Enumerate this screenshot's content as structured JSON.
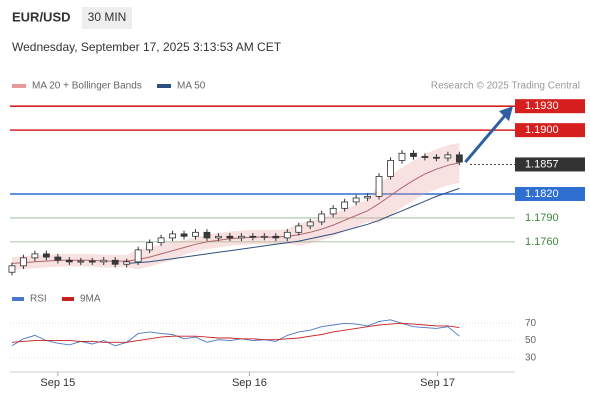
{
  "header": {
    "symbol": "EUR/USD",
    "timeframe": "30 MIN",
    "datetime": "Wednesday, September 17, 2025 3:13:53 AM CET",
    "credit": "Research © 2025 Trading Central"
  },
  "chart_data": [
    {
      "type": "candlestick",
      "open": [
        1.1722,
        1.173,
        1.174,
        1.1745,
        1.1741,
        1.1737,
        1.1735,
        1.1736,
        1.1735,
        1.1737,
        1.1732,
        1.1735,
        1.175,
        1.1759,
        1.1765,
        1.177,
        1.1767,
        1.1772,
        1.1765,
        1.1767,
        1.1765,
        1.1767,
        1.1766,
        1.1767,
        1.1765,
        1.1772,
        1.178,
        1.1785,
        1.1795,
        1.1802,
        1.181,
        1.1815,
        1.1817,
        1.1842,
        1.1862,
        1.1871,
        1.1867,
        1.1866,
        1.1865,
        1.1869
      ],
      "high": [
        1.1734,
        1.1744,
        1.1749,
        1.1749,
        1.1745,
        1.1741,
        1.174,
        1.174,
        1.1741,
        1.1741,
        1.1739,
        1.1754,
        1.1763,
        1.1769,
        1.1774,
        1.1774,
        1.1776,
        1.1776,
        1.1771,
        1.1771,
        1.1771,
        1.1771,
        1.1771,
        1.1771,
        1.1776,
        1.1784,
        1.1789,
        1.1799,
        1.1806,
        1.1814,
        1.1819,
        1.1821,
        1.1846,
        1.1866,
        1.1875,
        1.1875,
        1.1871,
        1.187,
        1.1873,
        1.1873
      ],
      "low": [
        1.1718,
        1.1726,
        1.1736,
        1.1737,
        1.1733,
        1.1731,
        1.1731,
        1.1731,
        1.1731,
        1.1728,
        1.1728,
        1.1731,
        1.1746,
        1.1755,
        1.1761,
        1.1763,
        1.1763,
        1.1761,
        1.1761,
        1.1761,
        1.1761,
        1.1762,
        1.1762,
        1.1761,
        1.1761,
        1.1768,
        1.1776,
        1.1781,
        1.1791,
        1.1798,
        1.1806,
        1.1811,
        1.1813,
        1.1838,
        1.1858,
        1.1863,
        1.1862,
        1.1861,
        1.1861,
        1.1856
      ],
      "close": [
        1.173,
        1.174,
        1.1745,
        1.1741,
        1.1737,
        1.1735,
        1.1736,
        1.1735,
        1.1737,
        1.1732,
        1.1735,
        1.175,
        1.1759,
        1.1765,
        1.177,
        1.1767,
        1.1772,
        1.1765,
        1.1767,
        1.1765,
        1.1767,
        1.1766,
        1.1767,
        1.1765,
        1.1772,
        1.178,
        1.1785,
        1.1795,
        1.1802,
        1.181,
        1.1815,
        1.1817,
        1.1842,
        1.1862,
        1.1871,
        1.1867,
        1.1866,
        1.1865,
        1.1869,
        1.186
      ],
      "color_up": "#ffffff",
      "color_down": "#3a3a3a",
      "xlim": [
        -0.17,
        43.85
      ],
      "ylim": [
        1.1706,
        1.1944
      ],
      "overlays": [
        {
          "name": "MA 20 + Bollinger Bands",
          "color": "#e89a9a",
          "values": [
            1.1733,
            1.1734,
            1.1735,
            1.1736,
            1.1737,
            1.1737,
            1.1737,
            1.1737,
            1.1736,
            1.1736,
            1.1736,
            1.1738,
            1.1741,
            1.1745,
            1.1749,
            1.1753,
            1.1757,
            1.176,
            1.1762,
            1.1764,
            1.1765,
            1.1766,
            1.1766,
            1.1766,
            1.1767,
            1.1769,
            1.1772,
            1.1776,
            1.1781,
            1.1787,
            1.1793,
            1.1799,
            1.1808,
            1.1818,
            1.1828,
            1.1837,
            1.1845,
            1.1851,
            1.1856,
            1.1859
          ],
          "upper": [
            1.1741,
            1.1742,
            1.1743,
            1.1744,
            1.1745,
            1.1745,
            1.1745,
            1.1745,
            1.1744,
            1.1744,
            1.1744,
            1.175,
            1.1753,
            1.1757,
            1.1761,
            1.1762,
            1.1766,
            1.1769,
            1.1771,
            1.1773,
            1.1774,
            1.1775,
            1.1775,
            1.1775,
            1.1776,
            1.1783,
            1.1786,
            1.179,
            1.1795,
            1.1801,
            1.1807,
            1.1813,
            1.1833,
            1.1843,
            1.1853,
            1.1862,
            1.187,
            1.1876,
            1.1881,
            1.1884
          ],
          "lower": [
            1.1725,
            1.1726,
            1.1727,
            1.1728,
            1.1729,
            1.1729,
            1.1729,
            1.1729,
            1.1728,
            1.1728,
            1.1728,
            1.1726,
            1.1729,
            1.1733,
            1.1737,
            1.1744,
            1.1748,
            1.1751,
            1.1753,
            1.1755,
            1.1756,
            1.1757,
            1.1757,
            1.1757,
            1.1758,
            1.1755,
            1.1758,
            1.1762,
            1.1767,
            1.1773,
            1.1779,
            1.1785,
            1.1783,
            1.1793,
            1.1803,
            1.1812,
            1.182,
            1.1826,
            1.1831,
            1.1834
          ]
        },
        {
          "name": "MA 50",
          "color": "#2f4f7f",
          "values": [
            null,
            null,
            null,
            null,
            null,
            null,
            null,
            null,
            null,
            null,
            1.1733,
            1.1734,
            1.1735,
            1.1737,
            1.1739,
            1.1741,
            1.1743,
            1.1745,
            1.1747,
            1.1749,
            1.1751,
            1.1753,
            1.1755,
            1.1757,
            1.1759,
            1.1761,
            1.1764,
            1.1767,
            1.177,
            1.1774,
            1.1778,
            1.1782,
            1.1787,
            1.1793,
            1.1799,
            1.1805,
            1.1811,
            1.1817,
            1.1822,
            1.1827
          ]
        }
      ],
      "levels": [
        {
          "value": 1.193,
          "label": "1.1930",
          "color": "#d62020",
          "box": true
        },
        {
          "value": 1.19,
          "label": "1.1900",
          "color": "#d62020",
          "box": true
        },
        {
          "value": 1.1857,
          "label": "1.1857",
          "color": "#333333",
          "box": true,
          "dotted": true
        },
        {
          "value": 1.182,
          "label": "1.1820",
          "color": "#2e6fd1",
          "box": true
        },
        {
          "value": 1.179,
          "label": "1.1790",
          "color": "#3c8a3c",
          "box": false
        },
        {
          "value": 1.176,
          "label": "1.1760",
          "color": "#3c8a3c",
          "box": false
        }
      ],
      "arrow_color": "#2f5f9f"
    },
    {
      "type": "line",
      "series": [
        {
          "name": "RSI",
          "color": "#4a78c8",
          "values": [
            44,
            52,
            56,
            50,
            47,
            45,
            49,
            46,
            50,
            44,
            48,
            58,
            60,
            58,
            57,
            52,
            54,
            48,
            51,
            50,
            52,
            50,
            51,
            49,
            56,
            60,
            62,
            66,
            68,
            70,
            69,
            67,
            72,
            74,
            70,
            66,
            65,
            64,
            66,
            55
          ]
        },
        {
          "name": "9MA",
          "color": "#c82020",
          "values": [
            48,
            49,
            50,
            50,
            50,
            50,
            49,
            49,
            48,
            48,
            48,
            50,
            52,
            54,
            55,
            55,
            55,
            54,
            53,
            53,
            52,
            52,
            51,
            51,
            52,
            53,
            55,
            57,
            60,
            62,
            64,
            66,
            68,
            69,
            70,
            69,
            68,
            67,
            67,
            65
          ]
        }
      ],
      "xlim": [
        -0.17,
        43.85
      ],
      "ylim": [
        16,
        83
      ],
      "yticks": [
        30,
        50,
        70
      ],
      "xticks": [
        {
          "value": 4,
          "label": "Sep 15"
        },
        {
          "value": 20.7,
          "label": "Sep 16"
        },
        {
          "value": 37.1,
          "label": "Sep 17"
        }
      ]
    }
  ]
}
